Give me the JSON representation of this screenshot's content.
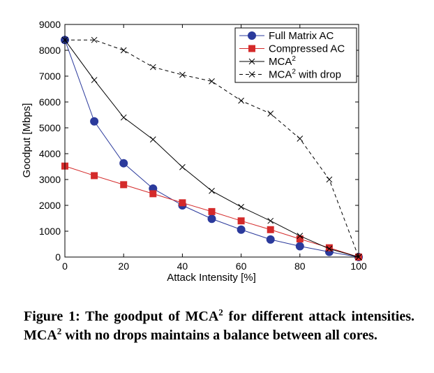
{
  "chart_data": {
    "type": "line",
    "xlabel": "Attack Intensity [%]",
    "ylabel": "Goodput [Mbps]",
    "xlim": [
      0,
      100
    ],
    "ylim": [
      0,
      9000
    ],
    "xticks": [
      0,
      20,
      40,
      60,
      80,
      100
    ],
    "yticks": [
      0,
      1000,
      2000,
      3000,
      4000,
      5000,
      6000,
      7000,
      8000,
      9000
    ],
    "grid": false,
    "legend_position": "top-right",
    "x": [
      0,
      10,
      20,
      30,
      40,
      50,
      60,
      70,
      80,
      90,
      100
    ],
    "series": [
      {
        "name": "Full Matrix AC",
        "name_main": "Full Matrix AC",
        "name_sup": "",
        "name_tail": "",
        "color": "#2b3a9c",
        "line": "solid",
        "marker": "circle",
        "values": [
          8400,
          5250,
          3630,
          2650,
          2000,
          1480,
          1060,
          680,
          420,
          200,
          0
        ]
      },
      {
        "name": "Compressed AC",
        "name_main": "Compressed AC",
        "name_sup": "",
        "name_tail": "",
        "color": "#d42a2a",
        "line": "solid",
        "marker": "square",
        "values": [
          3520,
          3150,
          2800,
          2450,
          2100,
          1760,
          1400,
          1060,
          700,
          360,
          0
        ]
      },
      {
        "name": "MCA2",
        "name_main": "MCA",
        "name_sup": "2",
        "name_tail": "",
        "color": "#000000",
        "line": "solid",
        "marker": "x",
        "values": [
          8400,
          6850,
          5400,
          4550,
          3480,
          2560,
          1940,
          1400,
          820,
          320,
          0
        ]
      },
      {
        "name": "MCA2 with drop",
        "name_main": "MCA",
        "name_sup": "2",
        "name_tail": " with drop",
        "color": "#000000",
        "line": "dashed",
        "marker": "x",
        "values": [
          8400,
          8400,
          8000,
          7350,
          7050,
          6800,
          6050,
          5550,
          4580,
          3000,
          0
        ]
      }
    ]
  },
  "caption": {
    "part1": "Figure 1: The goodput of MCA",
    "sup1": "2",
    "part2": " for different attack intensities. MCA",
    "sup2": "2",
    "part3": " with no drops maintains a balance between all cores."
  }
}
